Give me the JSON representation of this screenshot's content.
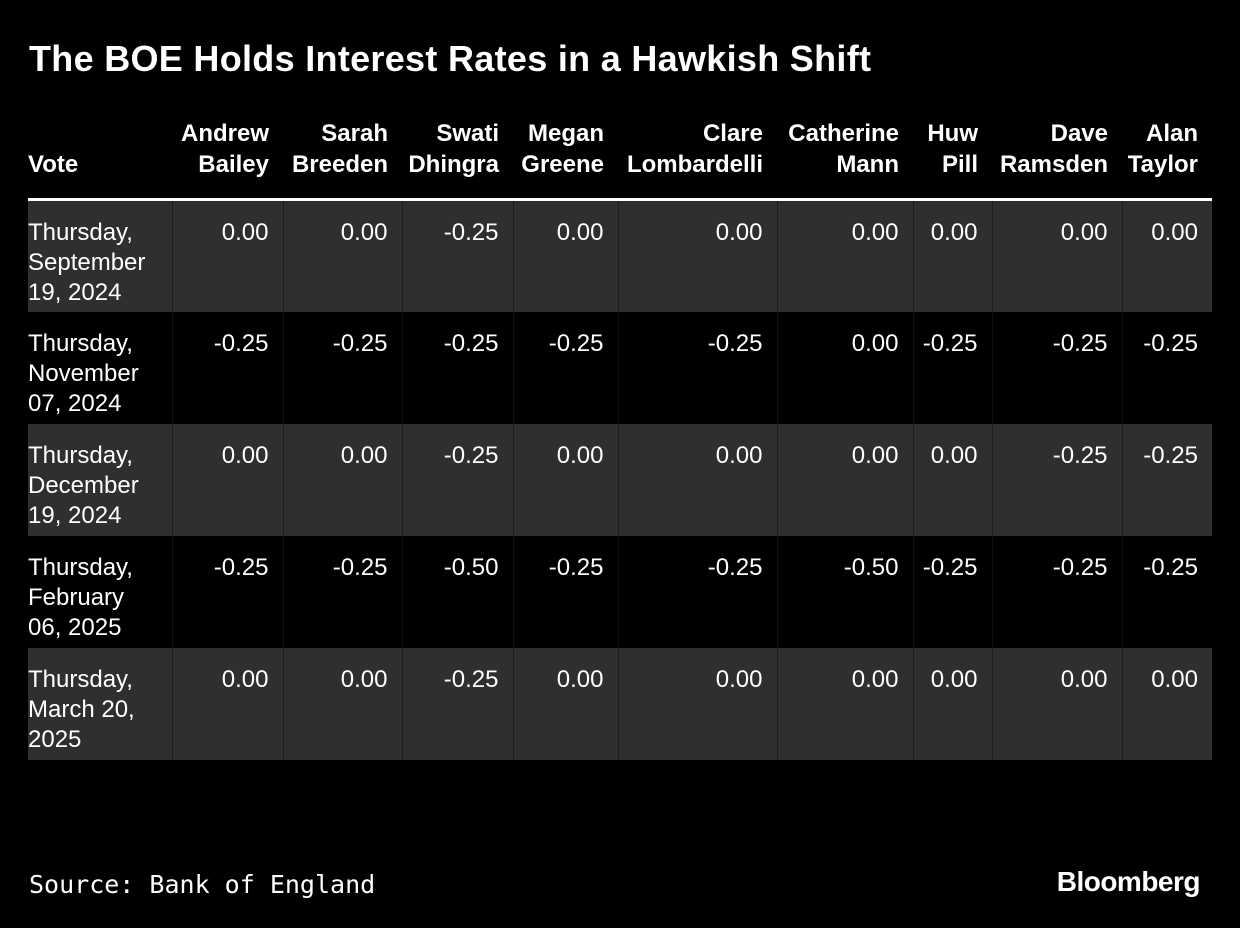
{
  "chart_data": {
    "type": "table",
    "title": "The BOE Holds Interest Rates in a Hawkish Shift",
    "row_header_label": "Vote",
    "columns": [
      [
        "Andrew",
        "Bailey"
      ],
      [
        "Sarah",
        "Breeden"
      ],
      [
        "Swati",
        "Dhingra"
      ],
      [
        "Megan",
        "Greene"
      ],
      [
        "Clare",
        "Lombardelli"
      ],
      [
        "Catherine",
        "Mann"
      ],
      [
        "Huw",
        "Pill"
      ],
      [
        "Dave",
        "Ramsden"
      ],
      [
        "Alan",
        "Taylor"
      ]
    ],
    "rows": [
      {
        "date_lines": [
          "Thursday,",
          "September",
          "19, 2024"
        ],
        "values": [
          "0.00",
          "0.00",
          "-0.25",
          "0.00",
          "0.00",
          "0.00",
          "0.00",
          "0.00",
          "0.00"
        ]
      },
      {
        "date_lines": [
          "Thursday,",
          "November",
          "07, 2024"
        ],
        "values": [
          "-0.25",
          "-0.25",
          "-0.25",
          "-0.25",
          "-0.25",
          "0.00",
          "-0.25",
          "-0.25",
          "-0.25"
        ]
      },
      {
        "date_lines": [
          "Thursday,",
          "December",
          "19, 2024"
        ],
        "values": [
          "0.00",
          "0.00",
          "-0.25",
          "0.00",
          "0.00",
          "0.00",
          "0.00",
          "-0.25",
          "-0.25"
        ]
      },
      {
        "date_lines": [
          "Thursday,",
          "February",
          "06, 2025"
        ],
        "values": [
          "-0.25",
          "-0.25",
          "-0.50",
          "-0.25",
          "-0.25",
          "-0.50",
          "-0.25",
          "-0.25",
          "-0.25"
        ]
      },
      {
        "date_lines": [
          "Thursday,",
          "March 20,",
          "2025"
        ],
        "values": [
          "0.00",
          "0.00",
          "-0.25",
          "0.00",
          "0.00",
          "0.00",
          "0.00",
          "0.00",
          "0.00"
        ]
      }
    ],
    "colors": {
      "background": "#000000",
      "shaded_row": "#2f2f2f",
      "text": "#ffffff"
    }
  },
  "footer": {
    "source": "Source: Bank of England",
    "brand": "Bloomberg"
  }
}
